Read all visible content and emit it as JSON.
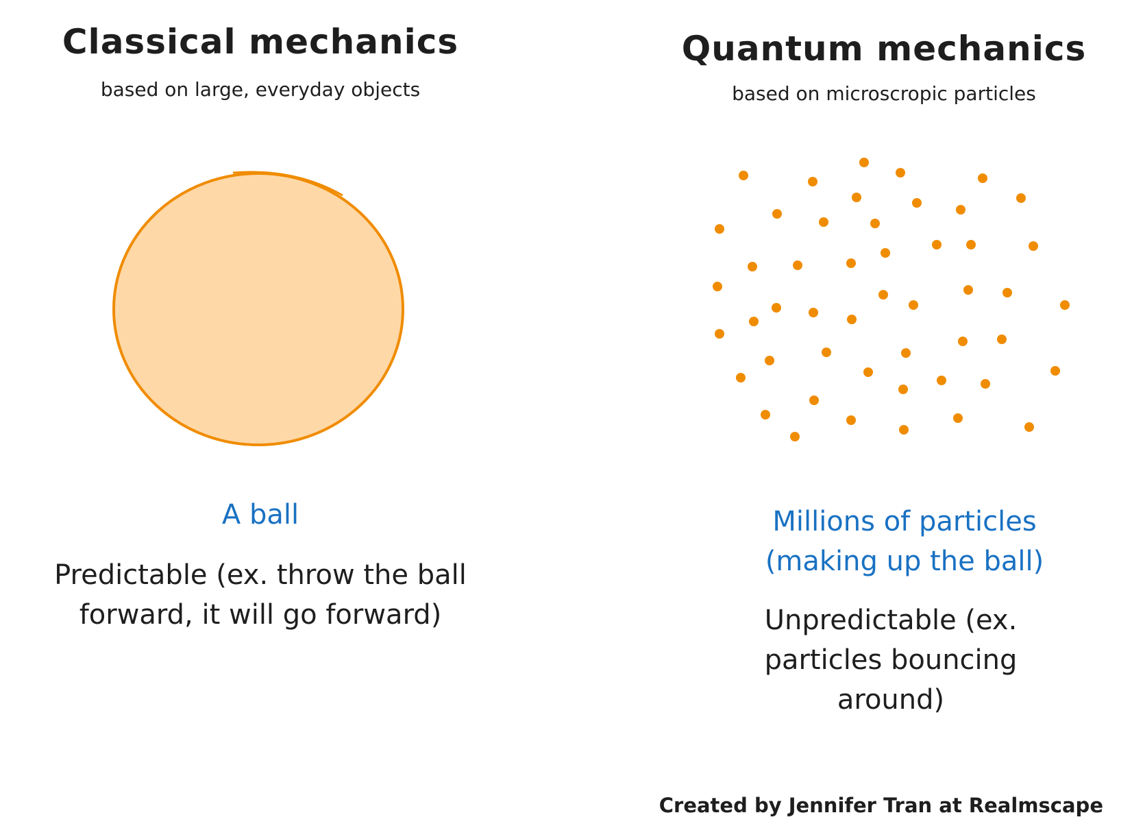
{
  "left": {
    "title": "Classical mechanics",
    "subtitle": "based on large, everyday objects",
    "caption": "A ball",
    "description": "Predictable (ex. throw the ball forward, it will go forward)"
  },
  "right": {
    "title": "Quantum mechanics",
    "subtitle": "based on microscropic particles",
    "caption": "Millions of particles (making up the ball)",
    "description": "Unpredictable (ex. particles bouncing around)"
  },
  "credit": "Created by Jennifer Tran at Realmscape",
  "colors": {
    "ball_fill": "#ffd8a8",
    "ball_stroke": "#f08c00",
    "particle": "#f08c00",
    "caption": "#1971c2",
    "text": "#1e1e1e"
  }
}
